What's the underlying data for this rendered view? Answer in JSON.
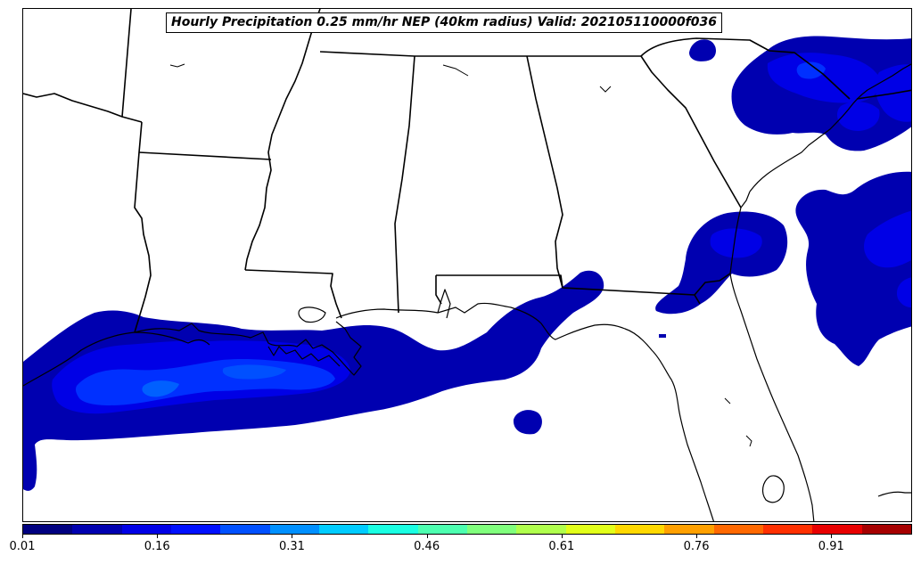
{
  "title": "Hourly Precipitation 0.25 mm/hr NEP (40km radius) Valid: 202105110000f036",
  "colorbar": {
    "colors": [
      "#000080",
      "#0000b0",
      "#0000e6",
      "#0010ff",
      "#0050ff",
      "#0090ff",
      "#00ccff",
      "#1affe2",
      "#4dffb0",
      "#80ff7d",
      "#b0ff4d",
      "#e2ff1a",
      "#ffd800",
      "#ffa000",
      "#ff6800",
      "#ff3000",
      "#e80000",
      "#a60000"
    ],
    "tick_labels": [
      "0.01",
      "0.16",
      "0.31",
      "0.46",
      "0.61",
      "0.76",
      "0.91"
    ],
    "tick_values": [
      0.01,
      0.16,
      0.31,
      0.46,
      0.61,
      0.76,
      0.91
    ],
    "vmin": 0.01,
    "vmax": 1.0
  },
  "colors": {
    "level1": "#0000b0",
    "level2": "#0000e6",
    "level3": "#0030ff",
    "level4": "#0060ff",
    "coast": "#000000"
  }
}
